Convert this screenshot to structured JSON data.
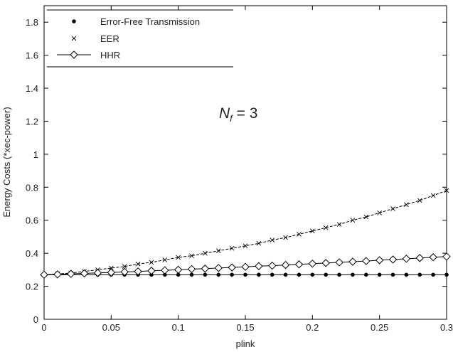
{
  "chart_data": {
    "type": "line",
    "xlabel": "plink",
    "ylabel": "Energy Costs (*xec-power)",
    "annotation": {
      "main": "N",
      "sub": "f",
      "rest": " = 3"
    },
    "xlim": [
      0,
      0.3
    ],
    "ylim": [
      0,
      1.9
    ],
    "xticks": [
      0,
      0.05,
      0.1,
      0.15,
      0.2,
      0.25,
      0.3
    ],
    "xtick_labels": [
      "0",
      "0.05",
      "0.1",
      "0.15",
      "0.2",
      "0.25",
      "0.3"
    ],
    "yticks": [
      0,
      0.2,
      0.4,
      0.6,
      0.8,
      1,
      1.2,
      1.4,
      1.6,
      1.8
    ],
    "ytick_labels": [
      "0",
      "0.2",
      "0.4",
      "0.6",
      "0.8",
      "1",
      "1.2",
      "1.4",
      "1.6",
      "1.8"
    ],
    "grid": false,
    "legend_position": "top-left",
    "x": [
      0,
      0.01,
      0.02,
      0.03,
      0.04,
      0.05,
      0.06,
      0.07,
      0.08,
      0.09,
      0.1,
      0.11,
      0.12,
      0.13,
      0.14,
      0.15,
      0.16,
      0.17,
      0.18,
      0.19,
      0.2,
      0.21,
      0.22,
      0.23,
      0.24,
      0.25,
      0.26,
      0.27,
      0.28,
      0.29,
      0.3
    ],
    "series": [
      {
        "name": "Error-Free Transmission",
        "marker": "dot",
        "line": "solid",
        "values": [
          0.27,
          0.27,
          0.27,
          0.27,
          0.27,
          0.27,
          0.27,
          0.27,
          0.27,
          0.27,
          0.27,
          0.27,
          0.27,
          0.27,
          0.27,
          0.27,
          0.27,
          0.27,
          0.27,
          0.27,
          0.27,
          0.27,
          0.27,
          0.27,
          0.27,
          0.27,
          0.27,
          0.27,
          0.27,
          0.27,
          0.27
        ]
      },
      {
        "name": "EER",
        "marker": "x",
        "line": "dashed",
        "values": [
          0.27,
          0.275,
          0.28,
          0.29,
          0.3,
          0.31,
          0.32,
          0.335,
          0.345,
          0.36,
          0.375,
          0.385,
          0.4,
          0.415,
          0.43,
          0.445,
          0.46,
          0.48,
          0.495,
          0.515,
          0.535,
          0.555,
          0.575,
          0.6,
          0.62,
          0.645,
          0.67,
          0.695,
          0.72,
          0.75,
          0.78
        ]
      },
      {
        "name": "HHR",
        "marker": "diamond",
        "line": "solid",
        "values": [
          0.27,
          0.272,
          0.275,
          0.278,
          0.281,
          0.284,
          0.287,
          0.29,
          0.294,
          0.297,
          0.3,
          0.304,
          0.307,
          0.311,
          0.314,
          0.318,
          0.322,
          0.325,
          0.329,
          0.333,
          0.337,
          0.341,
          0.345,
          0.349,
          0.353,
          0.358,
          0.362,
          0.367,
          0.371,
          0.376,
          0.38
        ]
      }
    ]
  }
}
